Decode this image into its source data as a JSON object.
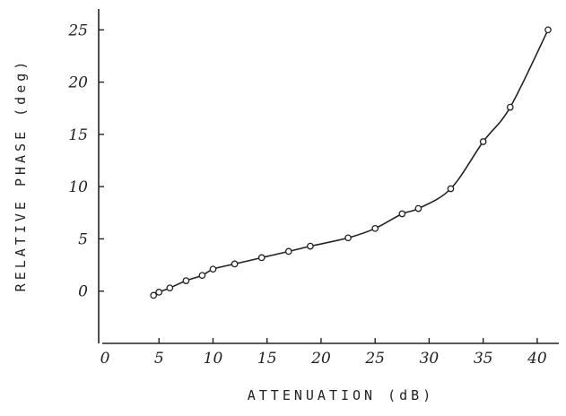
{
  "chart_data": {
    "type": "line",
    "title": "",
    "xlabel": "ATTENUATION (dB)",
    "ylabel": "RELATIVE PHASE (deg)",
    "xlim": [
      0,
      42
    ],
    "ylim": [
      -5,
      27
    ],
    "x_ticks": [
      0,
      5,
      10,
      15,
      20,
      25,
      30,
      35,
      40
    ],
    "y_ticks": [
      0,
      5,
      10,
      15,
      20,
      25
    ],
    "grid": false,
    "legend": "none",
    "series": [
      {
        "points": [
          [
            4.5,
            -0.4
          ],
          [
            5.0,
            -0.1
          ],
          [
            6.0,
            0.3
          ],
          [
            7.5,
            1.0
          ],
          [
            9.0,
            1.5
          ],
          [
            10.0,
            2.1
          ],
          [
            12.0,
            2.6
          ],
          [
            14.5,
            3.2
          ],
          [
            17.0,
            3.8
          ],
          [
            19.0,
            4.3
          ],
          [
            22.5,
            5.1
          ],
          [
            25.0,
            6.0
          ],
          [
            27.5,
            7.4
          ],
          [
            29.0,
            7.9
          ],
          [
            32.0,
            9.8
          ],
          [
            35.0,
            14.3
          ],
          [
            37.5,
            17.6
          ],
          [
            41.0,
            25.0
          ]
        ]
      }
    ]
  }
}
